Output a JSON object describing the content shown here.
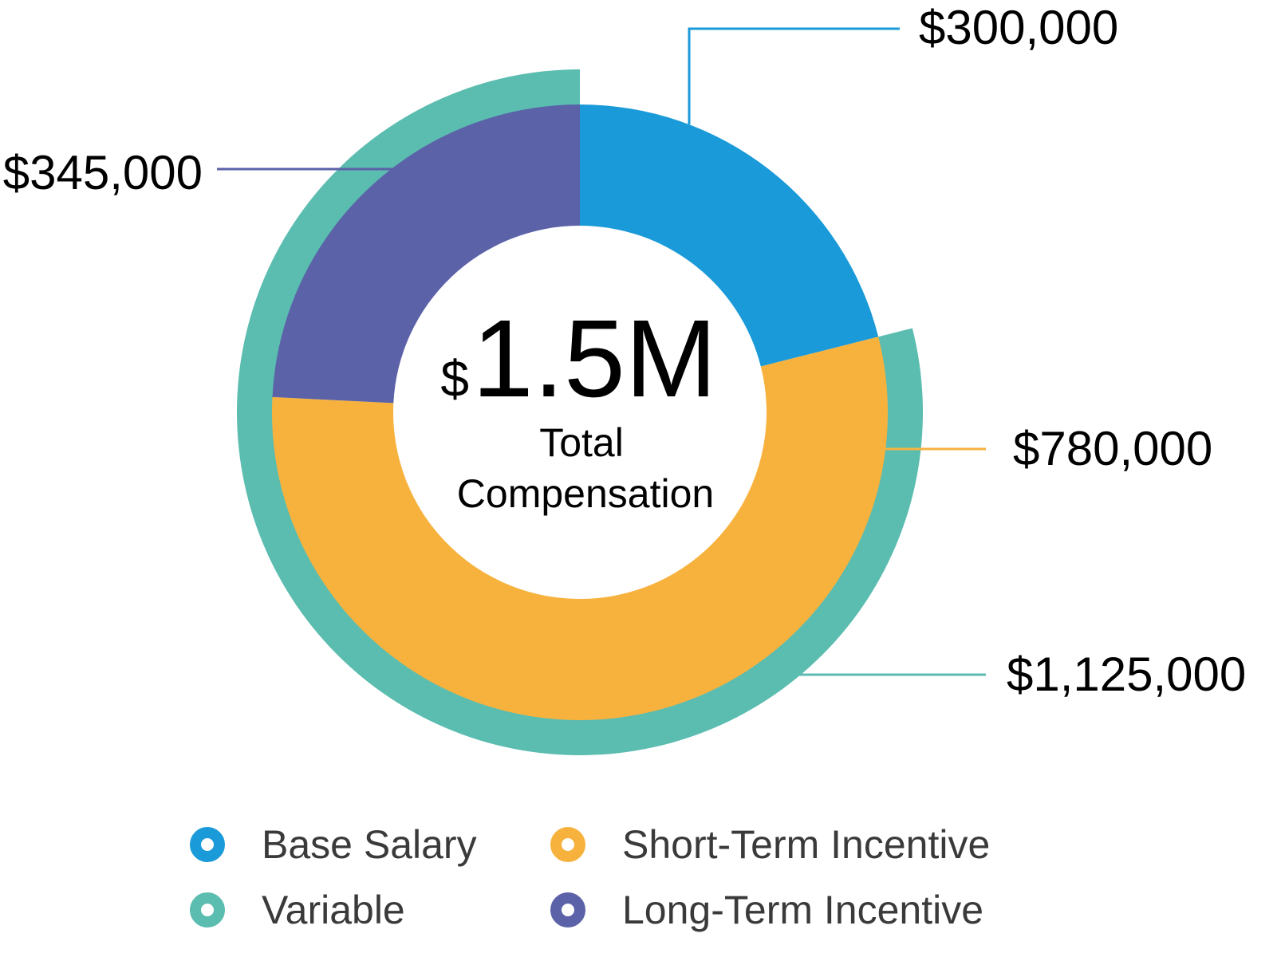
{
  "chart_data": {
    "type": "pie",
    "title": "",
    "center": {
      "currency_symbol": "$",
      "value": "1.5M",
      "label_line1": "Total",
      "label_line2": "Compensation"
    },
    "inner_ring": {
      "slices": [
        {
          "name": "Base Salary",
          "value": 300000,
          "label": "$300,000",
          "color": "#1a9ad8"
        },
        {
          "name": "Short-Term Incentive",
          "value": 780000,
          "label": "$780,000",
          "color": "#f7b23e"
        },
        {
          "name": "Long-Term Incentive",
          "value": 345000,
          "label": "$345,000",
          "color": "#5b62a8"
        }
      ]
    },
    "outer_ring": {
      "slices": [
        {
          "name": "Variable",
          "value": 1125000,
          "label": "$1,125,000",
          "color": "#5bbcb0"
        }
      ]
    },
    "legend": {
      "placement": "bottom",
      "items": [
        {
          "label": "Base Salary",
          "color": "#1a9ad8"
        },
        {
          "label": "Short-Term Incentive",
          "color": "#f7b23e"
        },
        {
          "label": "Variable",
          "color": "#5bbcb0"
        },
        {
          "label": "Long-Term Incentive",
          "color": "#5b62a8"
        }
      ]
    }
  }
}
